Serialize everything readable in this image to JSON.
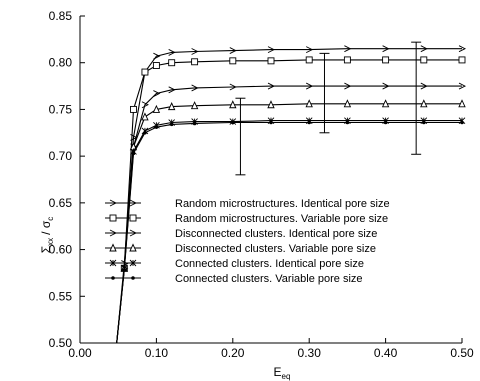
{
  "chart_data": {
    "type": "line",
    "xlabel": "E",
    "xlabel_sub": "eq",
    "ylabel": "Σ",
    "ylabel_sub": "xx",
    "ylabel_sep": "/ σ",
    "ylabel_sub2": "c",
    "xlim": [
      0.0,
      0.5
    ],
    "ylim": [
      0.5,
      0.85
    ],
    "x_ticks": [
      {
        "value": 0.0,
        "label": "0.00"
      },
      {
        "value": 0.1,
        "label": "0.10"
      },
      {
        "value": 0.2,
        "label": "0.20"
      },
      {
        "value": 0.3,
        "label": "0.30"
      },
      {
        "value": 0.4,
        "label": "0.40"
      },
      {
        "value": 0.5,
        "label": "0.50"
      }
    ],
    "y_ticks": [
      {
        "value": 0.5,
        "label": "0.50"
      },
      {
        "value": 0.55,
        "label": "0.55"
      },
      {
        "value": 0.6,
        "label": "0.60"
      },
      {
        "value": 0.65,
        "label": "0.65"
      },
      {
        "value": 0.7,
        "label": "0.70"
      },
      {
        "value": 0.75,
        "label": "0.75"
      },
      {
        "value": 0.8,
        "label": "0.80"
      },
      {
        "value": 0.85,
        "label": "0.85"
      }
    ],
    "legend_placement": "bottom-center",
    "series": [
      {
        "name": "Random microstructures. Identical pore size",
        "marker": "arrow",
        "x": [
          0.048,
          0.058,
          0.07,
          0.085,
          0.1,
          0.12,
          0.15,
          0.2,
          0.25,
          0.3,
          0.35,
          0.4,
          0.45,
          0.5
        ],
        "y": [
          0.5,
          0.585,
          0.72,
          0.79,
          0.807,
          0.811,
          0.812,
          0.813,
          0.814,
          0.814,
          0.815,
          0.815,
          0.815,
          0.815
        ]
      },
      {
        "name": "Random microstructures. Variable pore size",
        "marker": "square",
        "x": [
          0.048,
          0.058,
          0.07,
          0.085,
          0.1,
          0.12,
          0.15,
          0.2,
          0.25,
          0.3,
          0.35,
          0.4,
          0.45,
          0.5
        ],
        "y": [
          0.5,
          0.58,
          0.75,
          0.79,
          0.797,
          0.8,
          0.801,
          0.802,
          0.802,
          0.803,
          0.803,
          0.803,
          0.803,
          0.803
        ]
      },
      {
        "name": "Disconnected clusters. Identical pore size",
        "marker": "arrow",
        "x": [
          0.048,
          0.058,
          0.07,
          0.085,
          0.1,
          0.12,
          0.15,
          0.2,
          0.25,
          0.3,
          0.35,
          0.4,
          0.45,
          0.5
        ],
        "y": [
          0.5,
          0.58,
          0.71,
          0.755,
          0.767,
          0.771,
          0.773,
          0.774,
          0.775,
          0.775,
          0.775,
          0.775,
          0.775,
          0.775
        ]
      },
      {
        "name": "Disconnected clusters. Variable pore size",
        "marker": "triangle",
        "x": [
          0.048,
          0.058,
          0.07,
          0.085,
          0.1,
          0.12,
          0.15,
          0.2,
          0.25,
          0.3,
          0.35,
          0.4,
          0.45,
          0.5
        ],
        "y": [
          0.5,
          0.58,
          0.71,
          0.742,
          0.75,
          0.753,
          0.754,
          0.755,
          0.755,
          0.756,
          0.756,
          0.756,
          0.756,
          0.756
        ]
      },
      {
        "name": "Connected clusters. Identical pore size",
        "marker": "star",
        "x": [
          0.048,
          0.058,
          0.07,
          0.085,
          0.1,
          0.12,
          0.15,
          0.2,
          0.25,
          0.3,
          0.35,
          0.4,
          0.45,
          0.5
        ],
        "y": [
          0.5,
          0.58,
          0.705,
          0.727,
          0.733,
          0.736,
          0.737,
          0.737,
          0.738,
          0.738,
          0.738,
          0.738,
          0.738,
          0.738
        ]
      },
      {
        "name": "Connected clusters. Variable pore size",
        "marker": "dot",
        "x": [
          0.048,
          0.058,
          0.07,
          0.085,
          0.1,
          0.12,
          0.15,
          0.2,
          0.25,
          0.3,
          0.35,
          0.4,
          0.45,
          0.5
        ],
        "y": [
          0.5,
          0.578,
          0.703,
          0.725,
          0.731,
          0.734,
          0.735,
          0.736,
          0.736,
          0.736,
          0.736,
          0.736,
          0.736,
          0.736
        ]
      }
    ],
    "error_bars": [
      {
        "x": 0.21,
        "y": 0.737,
        "low": 0.68,
        "high": 0.762
      },
      {
        "x": 0.32,
        "y": 0.77,
        "low": 0.725,
        "high": 0.81
      },
      {
        "x": 0.44,
        "y": 0.737,
        "low": 0.702,
        "high": 0.822
      }
    ]
  }
}
